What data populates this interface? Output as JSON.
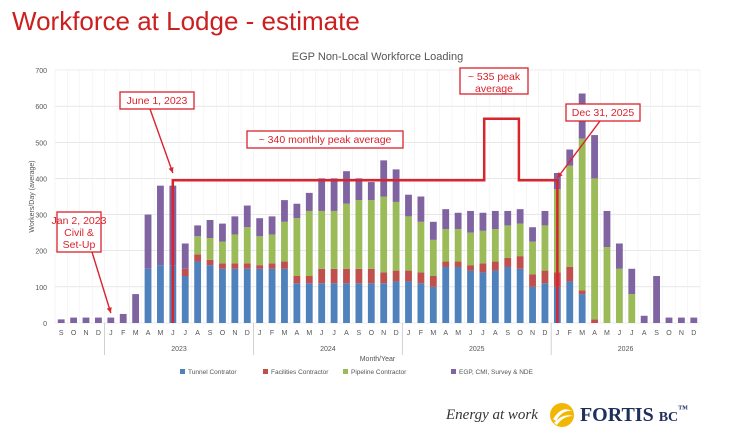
{
  "slide": {
    "title": "Workforce at Lodge - estimate",
    "tagline": "Energy at work",
    "brand": "FORTIS",
    "brand_suffix": "BC",
    "brand_mark": "™",
    "colors": {
      "title": "#cc1f1f",
      "annotation": "#d9232d"
    }
  },
  "chart_data": {
    "type": "bar",
    "stacked": true,
    "title": "EGP Non-Local Workforce Loading",
    "xlabel": "Month/Year",
    "ylabel": "Workers/Day (average)",
    "ylim": [
      0,
      700
    ],
    "yticks": [
      0,
      100,
      200,
      300,
      400,
      500,
      600,
      700
    ],
    "grid": true,
    "legend_position": "bottom",
    "categories": [
      "S",
      "O",
      "N",
      "D",
      "J",
      "F",
      "M",
      "A",
      "M",
      "J",
      "J",
      "A",
      "S",
      "O",
      "N",
      "D",
      "J",
      "F",
      "M",
      "A",
      "M",
      "J",
      "J",
      "A",
      "S",
      "O",
      "N",
      "D",
      "J",
      "F",
      "M",
      "A",
      "M",
      "J",
      "J",
      "A",
      "S",
      "O",
      "N",
      "D",
      "J",
      "F",
      "M",
      "A",
      "M",
      "J",
      "J",
      "A",
      "S",
      "O",
      "N",
      "D"
    ],
    "year_labels": [
      "2023",
      "2024",
      "2025",
      "2026"
    ],
    "series": [
      {
        "name": "Tunnel Contrator",
        "color": "#4f81bd",
        "values": [
          0,
          0,
          0,
          0,
          0,
          0,
          0,
          150,
          160,
          160,
          130,
          170,
          160,
          150,
          150,
          150,
          150,
          150,
          150,
          110,
          110,
          110,
          110,
          110,
          110,
          110,
          110,
          115,
          115,
          110,
          100,
          155,
          155,
          145,
          140,
          145,
          155,
          150,
          100,
          110,
          100,
          115,
          80,
          0,
          0,
          0,
          0,
          0,
          0,
          0,
          0,
          0
        ]
      },
      {
        "name": "Facilities Contractor",
        "color": "#c0504d",
        "values": [
          0,
          0,
          0,
          0,
          0,
          0,
          0,
          0,
          0,
          0,
          20,
          20,
          15,
          15,
          15,
          15,
          10,
          15,
          20,
          20,
          20,
          40,
          40,
          40,
          40,
          40,
          30,
          30,
          30,
          30,
          30,
          15,
          15,
          15,
          25,
          25,
          25,
          35,
          35,
          35,
          40,
          40,
          10,
          10,
          0,
          0,
          0,
          0,
          0,
          0,
          0,
          0
        ]
      },
      {
        "name": "Pipeline Contractor",
        "color": "#9bbb59",
        "values": [
          0,
          0,
          0,
          0,
          0,
          0,
          0,
          0,
          0,
          0,
          0,
          50,
          60,
          60,
          80,
          100,
          80,
          80,
          110,
          160,
          180,
          160,
          160,
          180,
          190,
          190,
          210,
          190,
          150,
          140,
          100,
          90,
          90,
          90,
          90,
          90,
          90,
          90,
          90,
          125,
          230,
          280,
          420,
          390,
          210,
          150,
          80,
          0,
          0,
          0,
          0,
          0
        ]
      },
      {
        "name": "EGP, CMI, Survey & NDE",
        "color": "#8064a2",
        "values": [
          10,
          15,
          15,
          15,
          15,
          25,
          80,
          150,
          220,
          220,
          70,
          30,
          50,
          50,
          50,
          60,
          50,
          50,
          60,
          40,
          50,
          90,
          90,
          90,
          60,
          50,
          100,
          90,
          60,
          70,
          50,
          55,
          45,
          60,
          50,
          50,
          40,
          40,
          40,
          40,
          45,
          45,
          125,
          120,
          100,
          70,
          70,
          20,
          130,
          15,
          15,
          15
        ]
      }
    ],
    "annotations": {
      "start_label": "June 1, 2023",
      "end_label": "Dec 31, 2025",
      "monthly_peak": "~ 340 monthly peak average",
      "peak_label": "~ 535 peak average",
      "setup_label": "Jan 2, 2023 Civil & Set-Up"
    }
  }
}
